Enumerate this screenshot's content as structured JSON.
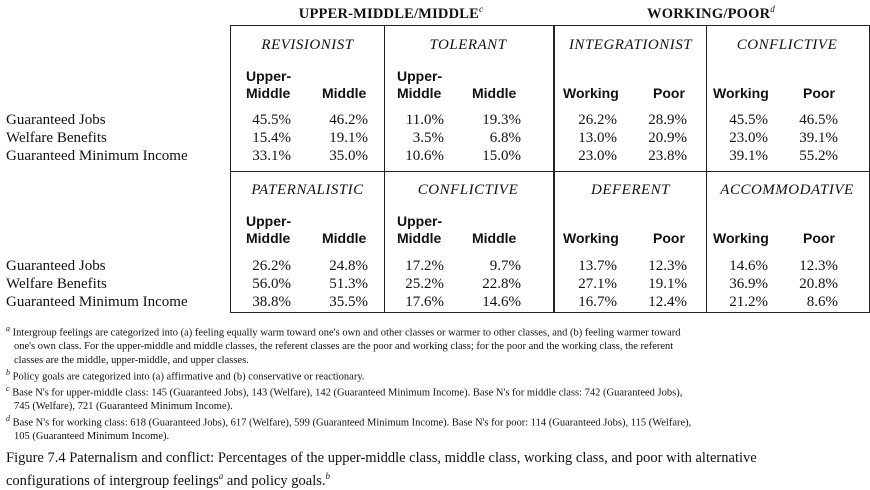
{
  "groups": {
    "upper": {
      "label": "UPPER-MIDDLE/MIDDLE",
      "mark": "c"
    },
    "lower": {
      "label": "WORKING/POOR",
      "mark": "d"
    }
  },
  "top": {
    "headers": [
      "REVISIONIST",
      "TOLERANT",
      "INTEGRATIONIST",
      "CONFLICTIVE"
    ],
    "rows": [
      {
        "label": "Guaranteed Jobs",
        "values": [
          "45.5%",
          "46.2%",
          "11.0%",
          "19.3%",
          "26.2%",
          "28.9%",
          "45.5%",
          "46.5%"
        ]
      },
      {
        "label": "Welfare Benefits",
        "values": [
          "15.4%",
          "19.1%",
          "3.5%",
          "6.8%",
          "13.0%",
          "20.9%",
          "23.0%",
          "39.1%"
        ]
      },
      {
        "label": "Guaranteed Minimum Income",
        "values": [
          "33.1%",
          "35.0%",
          "10.6%",
          "15.0%",
          "23.0%",
          "23.8%",
          "39.1%",
          "55.2%"
        ]
      }
    ]
  },
  "bottom": {
    "headers": [
      "PATERNALISTIC",
      "CONFLICTIVE",
      "DEFERENT",
      "ACCOMMODATIVE"
    ],
    "rows": [
      {
        "label": "Guaranteed Jobs",
        "values": [
          "26.2%",
          "24.8%",
          "17.2%",
          "9.7%",
          "13.7%",
          "12.3%",
          "14.6%",
          "12.3%"
        ]
      },
      {
        "label": "Welfare Benefits",
        "values": [
          "56.0%",
          "51.3%",
          "25.2%",
          "22.8%",
          "27.1%",
          "19.1%",
          "36.9%",
          "20.8%"
        ]
      },
      {
        "label": "Guaranteed Minimum Income",
        "values": [
          "38.8%",
          "35.5%",
          "17.6%",
          "14.6%",
          "16.7%",
          "12.4%",
          "21.2%",
          "8.6%"
        ]
      }
    ]
  },
  "cols": {
    "upper_a": "Upper-",
    "upper_b": "Middle",
    "middle": "Middle",
    "working": "Working",
    "poor": "Poor"
  },
  "footnotes": {
    "a": {
      "mark": "a",
      "text": " Intergroup feelings are categorized into (a) feeling equally warm toward one's own and other classes or warmer to other classes, and (b) feeling warmer toward",
      "cont": "one's own class. For the upper-middle and middle classes, the referent classes are the poor and working class; for the poor and the working class, the referent",
      "cont2": "classes are the middle, upper-middle, and upper classes."
    },
    "b": {
      "mark": "b",
      "text": " Policy goals are categorized into (a) affirmative and (b) conservative or reactionary."
    },
    "c": {
      "mark": "c",
      "text": " Base N's for upper-middle class: 145 (Guaranteed Jobs), 143 (Welfare), 142 (Guaranteed Minimum Income). Base N's for middle class: 742 (Guaranteed Jobs),",
      "cont": "745 (Welfare), 721 (Guaranteed Minimum Income)."
    },
    "d": {
      "mark": "d",
      "text": " Base N's for working class: 618 (Guaranteed Jobs), 617 (Welfare), 599 (Guaranteed Minimum Income). Base N's for poor: 114 (Guaranteed Jobs), 115 (Welfare),",
      "cont": "105 (Guaranteed Minimum Income)."
    }
  },
  "caption": {
    "line1": "Figure 7.4  Paternalism and conflict: Percentages of the upper-middle class, middle class, working class, and poor with alternative",
    "line2_a": "configurations of intergroup feelings",
    "mark_a": "a",
    "line2_b": " and policy goals.",
    "mark_b": "b"
  }
}
